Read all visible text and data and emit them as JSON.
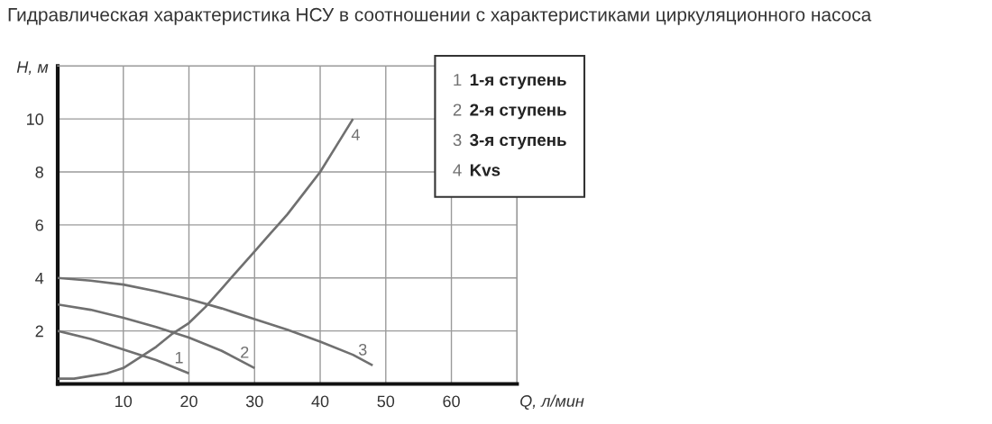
{
  "chart_data": {
    "type": "line",
    "title": "Гидравлическая характеристика НСУ в соотношении с характеристиками циркуляционного насоса",
    "xlabel": "Q, л/мин",
    "ylabel": "H, м",
    "xlim": [
      0,
      70
    ],
    "xticks": [
      {
        "value": 0,
        "label": null
      },
      10,
      20,
      30,
      40,
      50,
      60,
      {
        "value": 70,
        "label": null
      }
    ],
    "ylim": [
      0,
      12
    ],
    "yticks": [
      {
        "value": 0,
        "label": null
      },
      2,
      4,
      6,
      8,
      10,
      {
        "value": 12,
        "label": null
      }
    ],
    "grid": true,
    "series": [
      {
        "name": "1",
        "color": "#707070",
        "x": [
          0,
          5,
          10,
          15,
          20
        ],
        "values": [
          2.0,
          1.7,
          1.3,
          0.9,
          0.4
        ]
      },
      {
        "name": "2",
        "color": "#707070",
        "x": [
          0,
          5,
          10,
          15,
          20,
          25,
          30
        ],
        "values": [
          3.0,
          2.8,
          2.5,
          2.15,
          1.75,
          1.25,
          0.6
        ]
      },
      {
        "name": "3",
        "color": "#707070",
        "x": [
          0,
          5,
          10,
          15,
          20,
          25,
          30,
          35,
          40,
          45,
          48
        ],
        "values": [
          4.0,
          3.9,
          3.75,
          3.5,
          3.2,
          2.85,
          2.45,
          2.05,
          1.6,
          1.1,
          0.7
        ]
      },
      {
        "name": "4",
        "color": "#707070",
        "x": [
          0,
          2.5,
          5,
          7.5,
          10,
          12.5,
          15,
          17.5,
          20,
          22.5,
          25,
          27.5,
          30,
          32.5,
          35,
          37.5,
          40,
          42.5,
          45
        ],
        "values": [
          0.2,
          0.2,
          0.3,
          0.4,
          0.6,
          1.0,
          1.4,
          1.9,
          2.3,
          2.9,
          3.6,
          4.3,
          5.0,
          5.7,
          6.4,
          7.2,
          8.0,
          9.0,
          10.0
        ]
      }
    ],
    "annotations": [
      "1-я ступень",
      "2-я ступень",
      "3-я ступень",
      "Kvs"
    ]
  }
}
